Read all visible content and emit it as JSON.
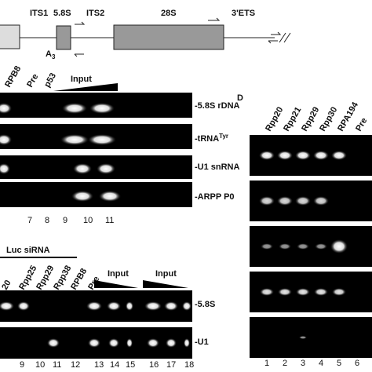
{
  "diagram": {
    "labels": [
      "ITS1",
      "5.8S",
      "ITS2",
      "28S",
      "3'ETS"
    ],
    "site": {
      "text": "A",
      "sub": "3"
    }
  },
  "panel_c": {
    "lanes": [
      "RPB8",
      "Pre",
      "p53"
    ],
    "input": "Input",
    "bands": [
      {
        "text": "-5.8S rDNA"
      },
      {
        "text": "-tRNA",
        "sup": "Tyr"
      },
      {
        "text": "-U1 snRNA"
      },
      {
        "text": "-ARPP P0"
      }
    ],
    "lane_numbers": [
      "7",
      "8",
      "9",
      "10",
      "11"
    ]
  },
  "panel_c2": {
    "title": "Luc siRNA",
    "lanes": [
      "20",
      "Rpp25",
      "Rpp29",
      "Rpp38",
      "RPB8",
      "Pre"
    ],
    "inputs": [
      "Input",
      "Input"
    ],
    "bands": [
      "-5.8S",
      "-U1"
    ],
    "lane_numbers": [
      "9",
      "10",
      "11",
      "12",
      "13",
      "14",
      "15",
      "16",
      "17",
      "18"
    ]
  },
  "panel_d": {
    "letter": "D",
    "lanes": [
      "Rpp20",
      "Rpp21",
      "Rpp29",
      "Rpp30",
      "RPA194",
      "Pre"
    ],
    "lane_numbers": [
      "1",
      "2",
      "3",
      "4",
      "5",
      "6"
    ]
  }
}
